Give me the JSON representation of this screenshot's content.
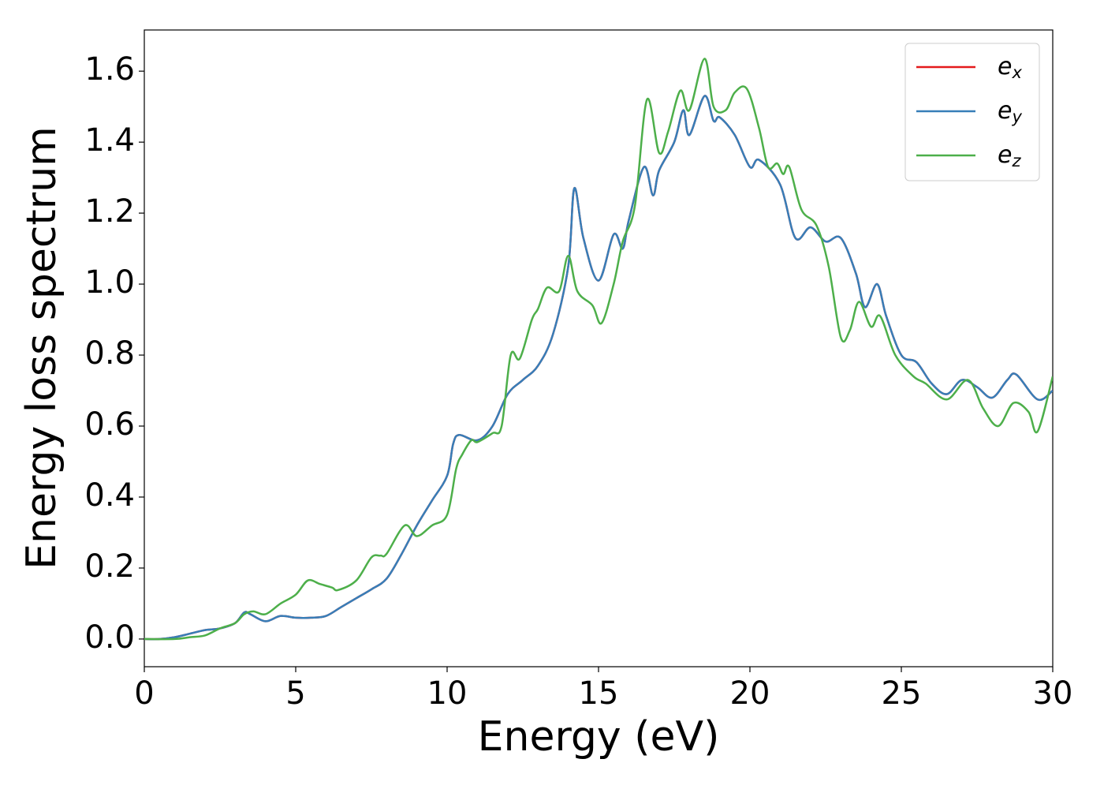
{
  "chart_data": {
    "type": "line",
    "xlabel": "Energy (eV)",
    "ylabel": "Energy loss spectrum",
    "xlim": [
      0,
      30
    ],
    "xticks": [
      0,
      5,
      10,
      15,
      20,
      25,
      30
    ],
    "ylim": [
      -0.078,
      1.716
    ],
    "yticks": [
      {
        "value": 0,
        "label": "0.0"
      },
      0.2,
      0.4,
      0.6,
      0.8,
      {
        "value": 1,
        "label": "1.0"
      },
      1.2,
      1.4,
      1.6
    ],
    "legend": "upper right",
    "grid": false,
    "series": [
      {
        "name": "e_x",
        "color": "#e41a1c",
        "x": [
          0,
          0.5,
          1,
          1.5,
          2,
          2.5,
          3,
          3.3,
          3.5,
          4,
          4.5,
          5,
          5.5,
          6,
          6.5,
          7,
          7.5,
          8,
          8.5,
          9,
          9.5,
          10,
          10.2,
          10.4,
          11,
          11.5,
          12,
          12.5,
          13,
          13.5,
          14,
          14.2,
          14.5,
          15,
          15.5,
          15.8,
          16,
          16.5,
          16.8,
          17,
          17.5,
          17.8,
          18,
          18.5,
          18.8,
          19,
          19.5,
          20,
          20.3,
          21,
          21.5,
          22,
          22.5,
          23,
          23.5,
          23.8,
          24.2,
          24.5,
          25,
          25.5,
          26,
          26.5,
          27,
          27.5,
          28,
          28.5,
          28.8,
          29.5,
          30
        ],
        "values": [
          0,
          0,
          0.005,
          0.015,
          0.025,
          0.03,
          0.045,
          0.075,
          0.07,
          0.05,
          0.065,
          0.06,
          0.06,
          0.065,
          0.09,
          0.115,
          0.14,
          0.17,
          0.24,
          0.32,
          0.39,
          0.46,
          0.55,
          0.575,
          0.56,
          0.6,
          0.69,
          0.73,
          0.77,
          0.86,
          1.05,
          1.27,
          1.13,
          1.01,
          1.14,
          1.1,
          1.18,
          1.33,
          1.25,
          1.32,
          1.4,
          1.49,
          1.42,
          1.53,
          1.46,
          1.47,
          1.42,
          1.33,
          1.35,
          1.28,
          1.13,
          1.16,
          1.12,
          1.13,
          1.03,
          0.935,
          1.0,
          0.91,
          0.8,
          0.78,
          0.72,
          0.69,
          0.73,
          0.71,
          0.68,
          0.73,
          0.745,
          0.675,
          0.7
        ]
      },
      {
        "name": "e_y",
        "color": "#377eb8",
        "x": [
          0,
          0.5,
          1,
          1.5,
          2,
          2.5,
          3,
          3.3,
          3.5,
          4,
          4.5,
          5,
          5.5,
          6,
          6.5,
          7,
          7.5,
          8,
          8.5,
          9,
          9.5,
          10,
          10.2,
          10.4,
          11,
          11.5,
          12,
          12.5,
          13,
          13.5,
          14,
          14.2,
          14.5,
          15,
          15.5,
          15.8,
          16,
          16.5,
          16.8,
          17,
          17.5,
          17.8,
          18,
          18.5,
          18.8,
          19,
          19.5,
          20,
          20.3,
          21,
          21.5,
          22,
          22.5,
          23,
          23.5,
          23.8,
          24.2,
          24.5,
          25,
          25.5,
          26,
          26.5,
          27,
          27.5,
          28,
          28.5,
          28.8,
          29.5,
          30
        ],
        "values": [
          0,
          0,
          0.005,
          0.015,
          0.025,
          0.03,
          0.045,
          0.075,
          0.07,
          0.05,
          0.065,
          0.06,
          0.06,
          0.065,
          0.09,
          0.115,
          0.14,
          0.17,
          0.24,
          0.32,
          0.39,
          0.46,
          0.55,
          0.575,
          0.56,
          0.6,
          0.69,
          0.73,
          0.77,
          0.86,
          1.05,
          1.27,
          1.13,
          1.01,
          1.14,
          1.1,
          1.18,
          1.33,
          1.25,
          1.32,
          1.4,
          1.49,
          1.42,
          1.53,
          1.46,
          1.47,
          1.42,
          1.33,
          1.35,
          1.28,
          1.13,
          1.16,
          1.12,
          1.13,
          1.03,
          0.935,
          1.0,
          0.91,
          0.8,
          0.78,
          0.72,
          0.69,
          0.73,
          0.71,
          0.68,
          0.73,
          0.745,
          0.675,
          0.7
        ]
      },
      {
        "name": "e_z",
        "color": "#4daf4a",
        "x": [
          0,
          1,
          1.5,
          2,
          2.5,
          3,
          3.3,
          3.6,
          4,
          4.5,
          5,
          5.4,
          5.8,
          6.2,
          6.4,
          7,
          7.5,
          7.8,
          8,
          8.6,
          9,
          9.5,
          10,
          10.3,
          10.5,
          10.8,
          11,
          11.5,
          11.8,
          12.1,
          12.4,
          12.8,
          13,
          13.3,
          13.7,
          14,
          14.3,
          14.8,
          15.1,
          15.5,
          15.8,
          16.2,
          16.6,
          17,
          17.3,
          17.7,
          18,
          18.5,
          18.8,
          19.2,
          19.5,
          19.9,
          20.3,
          20.6,
          20.9,
          21.1,
          21.3,
          21.7,
          22.2,
          22.6,
          23,
          23.3,
          23.6,
          24,
          24.3,
          24.8,
          25.4,
          25.8,
          26.5,
          27.2,
          27.7,
          28.2,
          28.7,
          29.2,
          29.5,
          30
        ],
        "values": [
          0,
          0,
          0.005,
          0.01,
          0.03,
          0.045,
          0.07,
          0.078,
          0.07,
          0.1,
          0.125,
          0.165,
          0.155,
          0.145,
          0.138,
          0.165,
          0.23,
          0.235,
          0.24,
          0.32,
          0.29,
          0.32,
          0.35,
          0.48,
          0.52,
          0.56,
          0.555,
          0.58,
          0.6,
          0.8,
          0.79,
          0.9,
          0.93,
          0.99,
          0.98,
          1.08,
          0.98,
          0.94,
          0.89,
          1.0,
          1.12,
          1.22,
          1.52,
          1.37,
          1.43,
          1.545,
          1.49,
          1.635,
          1.5,
          1.49,
          1.54,
          1.55,
          1.44,
          1.33,
          1.34,
          1.31,
          1.33,
          1.21,
          1.165,
          1.05,
          0.85,
          0.87,
          0.95,
          0.88,
          0.91,
          0.8,
          0.74,
          0.72,
          0.675,
          0.73,
          0.65,
          0.6,
          0.665,
          0.64,
          0.585,
          0.74
        ]
      }
    ]
  }
}
